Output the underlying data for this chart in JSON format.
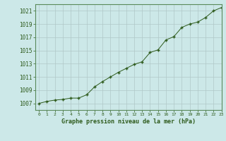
{
  "x": [
    0,
    1,
    2,
    3,
    4,
    5,
    6,
    7,
    8,
    9,
    10,
    11,
    12,
    13,
    14,
    15,
    16,
    17,
    18,
    19,
    20,
    21,
    22,
    23
  ],
  "y": [
    1007.0,
    1007.3,
    1007.5,
    1007.6,
    1007.8,
    1007.8,
    1008.3,
    1009.5,
    1010.3,
    1011.0,
    1011.7,
    1012.3,
    1012.9,
    1013.3,
    1014.7,
    1015.1,
    1016.6,
    1017.1,
    1018.5,
    1019.0,
    1019.3,
    1020.0,
    1021.0,
    1021.5
  ],
  "line_color": "#2d5a1b",
  "marker": "+",
  "marker_color": "#2d5a1b",
  "bg_color": "#cce8e8",
  "grid_color": "#b0c8c8",
  "xlabel": "Graphe pression niveau de la mer (hPa)",
  "xlabel_color": "#2d5a1b",
  "tick_color": "#2d5a1b",
  "ylim": [
    1006,
    1022
  ],
  "xlim": [
    -0.5,
    23
  ],
  "yticks": [
    1007,
    1009,
    1011,
    1013,
    1015,
    1017,
    1019,
    1021
  ],
  "xticks": [
    0,
    1,
    2,
    3,
    4,
    5,
    6,
    7,
    8,
    9,
    10,
    11,
    12,
    13,
    14,
    15,
    16,
    17,
    18,
    19,
    20,
    21,
    22,
    23
  ],
  "xtick_labels": [
    "0",
    "1",
    "2",
    "3",
    "4",
    "5",
    "6",
    "7",
    "8",
    "9",
    "10",
    "11",
    "12",
    "13",
    "14",
    "15",
    "16",
    "17",
    "18",
    "19",
    "20",
    "21",
    "22",
    "23"
  ]
}
